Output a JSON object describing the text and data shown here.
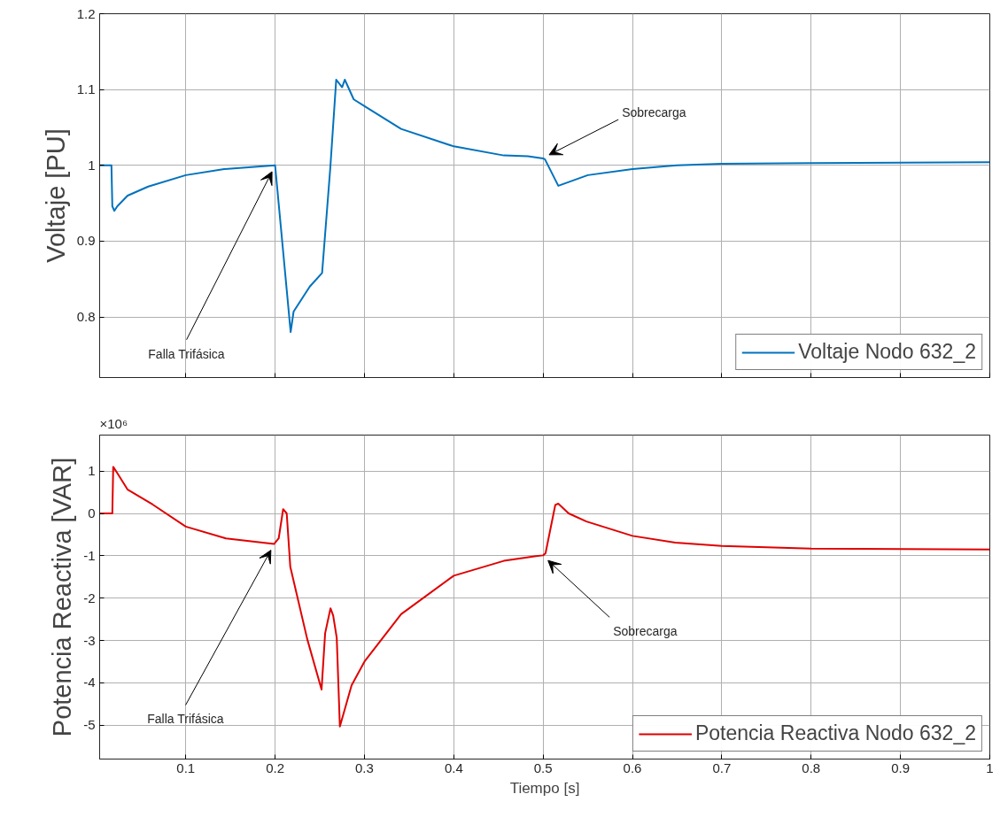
{
  "chart_data": [
    {
      "type": "line",
      "ylabel": "Voltaje [PU]",
      "xlim": [
        0.0036,
        1
      ],
      "ylim": [
        0.72,
        1.2
      ],
      "xticks": [
        0.1,
        0.2,
        0.3,
        0.4,
        0.5,
        0.6,
        0.7,
        0.8,
        0.9,
        1
      ],
      "yticks": [
        0.8,
        0.9,
        1,
        1.1,
        1.2
      ],
      "tick_labels": "y",
      "grid": true,
      "legend": "bottom right",
      "marker": "none",
      "line_style": "solid",
      "annotations": [
        {
          "text": "Falla Trifásica",
          "x": 0.2,
          "y": 1
        },
        {
          "text": "Sobrecarga",
          "x": 0.5,
          "y": 1.009
        }
      ],
      "series": [
        {
          "name": "Voltaje Nodo 632_2",
          "color": "#0072bd",
          "x": [
            0.0036,
            0.0168,
            0.0178,
            0.02,
            0.0234,
            0.0349,
            0.058,
            0.1,
            0.143,
            0.2,
            0.2174,
            0.2207,
            0.2388,
            0.2526,
            0.2618,
            0.2684,
            0.275,
            0.278,
            0.288,
            0.3,
            0.341,
            0.4,
            0.456,
            0.483,
            0.5,
            0.502,
            0.517,
            0.55,
            0.6,
            0.65,
            0.7,
            0.8,
            1
          ],
          "values": [
            1,
            1,
            0.946,
            0.94,
            0.946,
            0.96,
            0.972,
            0.987,
            0.995,
            1,
            0.78,
            0.807,
            0.84,
            0.858,
            0.997,
            1.113,
            1.103,
            1.113,
            1.087,
            1.078,
            1.048,
            1.025,
            1.013,
            1.012,
            1.009,
            1.008,
            0.973,
            0.987,
            0.995,
            1,
            1.002,
            1.003,
            1.004
          ]
        }
      ]
    },
    {
      "type": "line",
      "xlabel": "Tiempo [s]",
      "ylabel": "Potencia Reactiva [VAR]",
      "xlim": [
        0.0036,
        1
      ],
      "ylim": [
        -5.8,
        1.85
      ],
      "xticks": [
        0.1,
        0.2,
        0.3,
        0.4,
        0.5,
        0.6,
        0.7,
        0.8,
        0.9,
        1
      ],
      "yticks": [
        -5,
        -4,
        -3,
        -2,
        -1,
        0,
        1
      ],
      "grid": true,
      "legend": "bottom right",
      "marker": "none",
      "line_style": "solid",
      "annotations": [
        "×10⁶",
        {
          "text": "Falla Trifásica",
          "x": 0.199,
          "y": -0.72
        },
        {
          "text": "Sobrecarga",
          "x": 0.5,
          "y": -0.99
        }
      ],
      "series": [
        {
          "name": "Potencia Reactiva Nodo 632_2",
          "color": "#e00000",
          "x": [
            0.0036,
            0.0178,
            0.0188,
            0.0237,
            0.035,
            0.063,
            0.1,
            0.145,
            0.199,
            0.204,
            0.209,
            0.213,
            0.217,
            0.236,
            0.252,
            0.256,
            0.262,
            0.265,
            0.269,
            0.2725,
            0.2856,
            0.3,
            0.341,
            0.4,
            0.456,
            0.492,
            0.5,
            0.5027,
            0.5136,
            0.517,
            0.5286,
            0.5485,
            0.6,
            0.648,
            0.7,
            0.8,
            1
          ],
          "values": [
            0,
            0,
            1.1,
            0.94,
            0.56,
            0.21,
            -0.31,
            -0.59,
            -0.72,
            -0.59,
            0.1,
            0,
            -1.26,
            -2.97,
            -4.16,
            -2.83,
            -2.24,
            -2.41,
            -2.94,
            -5.03,
            -4.06,
            -3.5,
            -2.38,
            -1.47,
            -1.12,
            -1.01,
            -0.99,
            -0.94,
            0.2,
            0.23,
            0,
            -0.19,
            -0.53,
            -0.69,
            -0.77,
            -0.83,
            -0.85
          ]
        }
      ]
    }
  ]
}
